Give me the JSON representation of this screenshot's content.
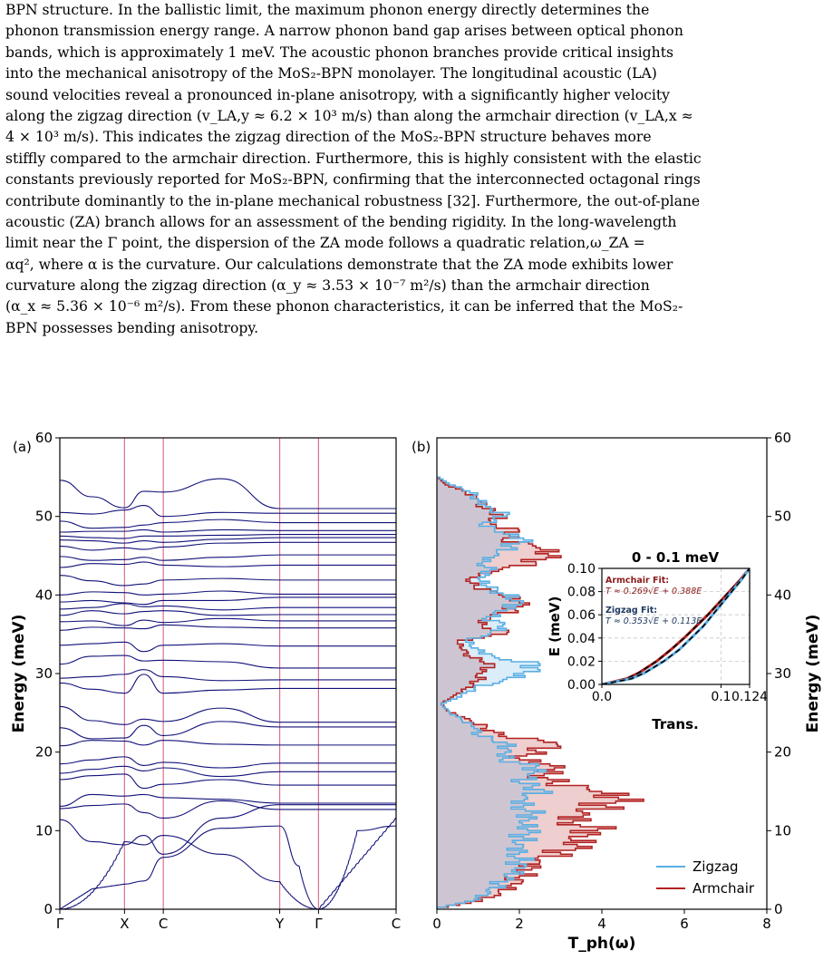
{
  "paragraph": {
    "lines": [
      "BPN structure. In the ballistic limit, the maximum phonon energy directly determines the",
      "phonon transmission energy range. A narrow phonon band gap arises between optical phonon",
      "bands, which is approximately 1 meV. The acoustic phonon branches provide critical insights",
      "into the mechanical anisotropy of the MoS₂-BPN monolayer. The longitudinal acoustic (LA)",
      "sound velocities reveal a pronounced in-plane anisotropy, with a significantly higher velocity",
      "along the zigzag direction (v_LA,y ≈ 6.2 × 10³ m/s) than along the armchair direction (v_LA,x ≈",
      "4 × 10³ m/s). This indicates the zigzag direction of the MoS₂-BPN structure behaves more",
      "stiffly compared to the armchair direction. Furthermore, this is highly consistent with the elastic",
      "constants previously reported for MoS₂-BPN, confirming that the interconnected octagonal rings",
      "contribute dominantly to the in-plane mechanical robustness [32]. Furthermore, the out-of-plane",
      "acoustic (ZA) branch allows for an assessment of the bending rigidity. In the long-wavelength",
      "limit near the Γ point, the dispersion of the ZA mode follows a quadratic relation,ω_ZA =",
      "αq², where α is the curvature. Our calculations demonstrate that the ZA mode exhibits lower",
      "curvature along the zigzag direction (α_y ≈ 3.53 × 10⁻⁷ m²/s) than the armchair direction",
      "(α_x ≈ 5.36 × 10⁻⁶ m²/s). From these phonon characteristics, it can be inferred that the MoS₂-",
      "BPN possesses bending anisotropy."
    ]
  },
  "chart_data": [
    {
      "type": "line",
      "panel_label": "(a)",
      "ylabel": "Energy (meV)",
      "ylim": [
        0,
        60
      ],
      "yticks": [
        0,
        10,
        20,
        30,
        40,
        50,
        60
      ],
      "xtick_labels": [
        "Γ",
        "X",
        "C",
        "Y",
        "Γ",
        "C"
      ],
      "xtick_positions": [
        0,
        1,
        1.6,
        3.4,
        4.0,
        5.2
      ],
      "vertical_lines_at": [
        1,
        1.6,
        3.4,
        4.0
      ],
      "line_color": "#11117a",
      "vline_color": "#d9738a",
      "band_energies_at_high_symmetry_points": [
        [
          0,
          2.6,
          3.2,
          3.6,
          6.6,
          10.3,
          10.6
        ],
        [
          0,
          0,
          0,
          0,
          0,
          0,
          0
        ],
        [
          11.4,
          8.6,
          8.2,
          9.4,
          7.0,
          11.6,
          13.3
        ],
        [
          12.8,
          13.2,
          13.4,
          12.3,
          11.6,
          13.8,
          12.7
        ],
        [
          13.1,
          14.6,
          14.4,
          14.6,
          14.2,
          14.0,
          13.5
        ],
        [
          16.5,
          17.0,
          17.2,
          15.4,
          15.9,
          16.5,
          15.8
        ],
        [
          17.3,
          17.8,
          18.2,
          17.6,
          18.0,
          16.9,
          17.5
        ],
        [
          18.5,
          19.0,
          19.4,
          18.3,
          18.7,
          18.0,
          18.6
        ],
        [
          20.8,
          21.5,
          21.4,
          20.9,
          21.5,
          21.0,
          20.9
        ],
        [
          23.1,
          21.7,
          21.8,
          23.4,
          22.1,
          23.9,
          23.2
        ],
        [
          25.8,
          24.0,
          23.5,
          24.2,
          23.9,
          25.6,
          23.8
        ],
        [
          28.8,
          28.0,
          27.5,
          29.9,
          27.5,
          27.9,
          28.1
        ],
        [
          29.4,
          29.6,
          29.9,
          30.5,
          29.6,
          29.1,
          29.2
        ],
        [
          31.2,
          32.2,
          32.3,
          31.6,
          31.7,
          31.5,
          30.7
        ],
        [
          33.6,
          33.8,
          34.0,
          32.8,
          33.6,
          33.8,
          33.5
        ],
        [
          35.5,
          35.9,
          35.8,
          35.7,
          36.2,
          35.9,
          35.8
        ],
        [
          36.6,
          36.7,
          36.1,
          36.8,
          36.5,
          37.0,
          36.7
        ],
        [
          37.4,
          38.0,
          37.6,
          37.9,
          38.0,
          37.4,
          37.5
        ],
        [
          38.2,
          38.4,
          38.9,
          38.5,
          38.6,
          38.1,
          38.4
        ],
        [
          39.1,
          39.3,
          39.0,
          38.8,
          39.3,
          39.3,
          39.7
        ],
        [
          40.0,
          40.4,
          40.3,
          40.0,
          40.1,
          40.5,
          40.1
        ],
        [
          42.5,
          41.8,
          41.2,
          41.4,
          41.9,
          42.1,
          41.9
        ],
        [
          43.5,
          44.0,
          43.9,
          44.2,
          43.8,
          43.6,
          43.8
        ],
        [
          44.9,
          44.4,
          44.5,
          44.8,
          44.4,
          44.8,
          45.1
        ],
        [
          46.2,
          45.7,
          46.0,
          45.8,
          46.1,
          46.6,
          46.7
        ],
        [
          47.0,
          46.9,
          46.6,
          46.9,
          46.7,
          47.1,
          47.3
        ],
        [
          47.5,
          47.3,
          47.2,
          47.5,
          47.5,
          47.6,
          47.7
        ],
        [
          48.0,
          48.1,
          48.1,
          48.3,
          48.0,
          48.3,
          48.2
        ],
        [
          49.4,
          48.5,
          48.6,
          48.9,
          49.2,
          49.6,
          49.2
        ],
        [
          50.5,
          50.3,
          50.8,
          51.4,
          50.0,
          50.5,
          50.4
        ],
        [
          54.6,
          52.5,
          51.1,
          53.2,
          53.1,
          54.8,
          51.0
        ]
      ]
    },
    {
      "type": "area",
      "panel_label": "(b)",
      "xlabel": "T_ph(ω)",
      "ylabel": "Energy (meV)",
      "xlim": [
        0,
        8
      ],
      "ylim": [
        0,
        60
      ],
      "xticks": [
        0,
        2,
        4,
        6,
        8
      ],
      "yticks": [
        0,
        10,
        20,
        30,
        40,
        50,
        60
      ],
      "legend_position": "lower-right",
      "series": [
        {
          "name": "Zigzag",
          "color": "#5aaee3",
          "energy": [
            0,
            1,
            2,
            3,
            4,
            5,
            6,
            7,
            8,
            9,
            10,
            11,
            12,
            13,
            14,
            15,
            16,
            17,
            18,
            19,
            20,
            21,
            22,
            23,
            24,
            25,
            26,
            27,
            28,
            29,
            30,
            31,
            32,
            33,
            34,
            35,
            36,
            37,
            38,
            39,
            40,
            41,
            42,
            43,
            44,
            45,
            46,
            47,
            48,
            49,
            50,
            51,
            52,
            53,
            54,
            55
          ],
          "values": [
            0,
            0.9,
            1.3,
            1.5,
            1.7,
            1.9,
            2.0,
            2.0,
            2.1,
            2.1,
            2.2,
            2.0,
            2.3,
            2.1,
            2.2,
            2.6,
            2.0,
            2.2,
            2.4,
            1.6,
            1.8,
            1.7,
            1.0,
            0.9,
            0.6,
            0.3,
            0.1,
            0.6,
            0.9,
            1.6,
            2.1,
            2.5,
            1.4,
            1.0,
            0.7,
            1.3,
            1.6,
            1.2,
            1.7,
            2.1,
            1.6,
            1.2,
            1.0,
            1.3,
            1.1,
            1.5,
            1.8,
            2.1,
            1.4,
            1.1,
            1.7,
            1.3,
            1.0,
            0.8,
            0.3,
            0
          ]
        },
        {
          "name": "Armchair",
          "color": "#b22222",
          "energy": [
            0,
            1,
            2,
            3,
            4,
            5,
            6,
            7,
            8,
            9,
            10,
            11,
            12,
            13,
            14,
            15,
            16,
            17,
            18,
            19,
            20,
            21,
            22,
            23,
            24,
            25,
            26,
            27,
            28,
            29,
            30,
            31,
            32,
            33,
            34,
            35,
            36,
            37,
            38,
            39,
            40,
            41,
            42,
            43,
            44,
            45,
            46,
            47,
            48,
            49,
            50,
            51,
            52,
            53,
            54,
            55
          ],
          "values": [
            0,
            1.1,
            1.5,
            1.8,
            2.0,
            2.3,
            2.5,
            3.0,
            3.4,
            3.2,
            3.9,
            3.3,
            3.7,
            4.1,
            4.4,
            3.7,
            2.8,
            2.6,
            3.1,
            2.0,
            2.4,
            2.9,
            1.5,
            1.2,
            0.8,
            0.3,
            0.1,
            0.4,
            0.7,
            1.0,
            1.1,
            1.4,
            0.8,
            0.6,
            0.5,
            1.7,
            1.1,
            1.3,
            1.9,
            2.0,
            1.5,
            0.9,
            0.8,
            1.5,
            2.4,
            2.7,
            2.4,
            1.6,
            2.0,
            1.3,
            1.6,
            1.1,
            1.0,
            0.7,
            0.2,
            0
          ]
        }
      ]
    },
    {
      "type": "line",
      "title": "0 - 0.1 meV",
      "xlabel": "Trans.",
      "ylabel": "E (meV)",
      "xlim": [
        0,
        0.124
      ],
      "ylim": [
        0,
        0.1
      ],
      "xticks": [
        0.0,
        0.1,
        0.124
      ],
      "xtick_labels": [
        "0.0",
        "0.1",
        "0.124"
      ],
      "yticks": [
        0.0,
        0.02,
        0.04,
        0.06,
        0.08,
        0.1
      ],
      "ytick_labels": [
        "0.00",
        "0.02",
        "0.04",
        "0.06",
        "0.08",
        "0.10"
      ],
      "grid": true,
      "annotations": [
        {
          "label": "Armchair Fit:",
          "equation": "T ≈ 0.269√E + 0.388E",
          "color": "#8b1a1a"
        },
        {
          "label": "Zigzag Fit:",
          "equation": "T ≈ 0.353√E + 0.113E",
          "color": "#1f3a60"
        }
      ],
      "series": [
        {
          "name": "Armchair",
          "color": "#b22222",
          "energy": [
            0,
            0.005,
            0.01,
            0.02,
            0.03,
            0.04,
            0.05,
            0.06,
            0.07,
            0.08,
            0.09,
            0.1
          ],
          "trans": [
            0,
            0.021,
            0.031,
            0.046,
            0.058,
            0.069,
            0.079,
            0.089,
            0.098,
            0.107,
            0.116,
            0.124
          ]
        },
        {
          "name": "Zigzag",
          "color": "#5aaee3",
          "energy": [
            0,
            0.005,
            0.01,
            0.02,
            0.03,
            0.04,
            0.05,
            0.06,
            0.07,
            0.08,
            0.09,
            0.1
          ],
          "trans": [
            0,
            0.025,
            0.036,
            0.052,
            0.065,
            0.075,
            0.085,
            0.093,
            0.101,
            0.109,
            0.117,
            0.124
          ]
        }
      ]
    }
  ]
}
